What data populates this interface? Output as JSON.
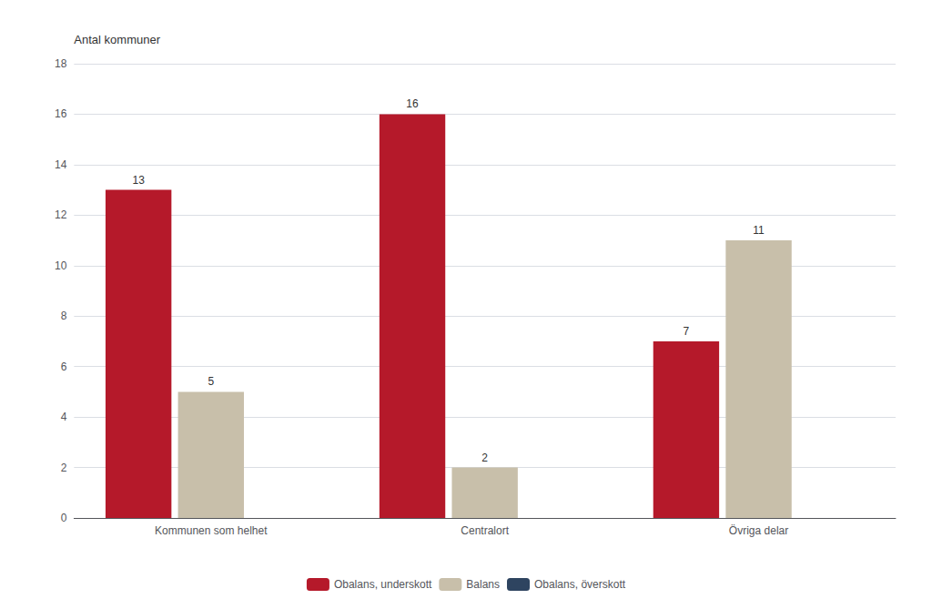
{
  "chart_data": {
    "type": "bar",
    "categories": [
      "Kommunen som helhet",
      "Centralort",
      "Övriga delar"
    ],
    "series": [
      {
        "name": "Obalans, underskott",
        "color": "#b5192a",
        "values": [
          13,
          16,
          7
        ]
      },
      {
        "name": "Balans",
        "color": "#c8bfaa",
        "values": [
          5,
          2,
          11
        ]
      },
      {
        "name": "Obalans, överskott",
        "color": "#2e4460",
        "values": [
          0,
          0,
          0
        ]
      }
    ],
    "ylabel": "Antal kommuner",
    "ylim": [
      0,
      18
    ],
    "yticks": [
      0,
      2,
      4,
      6,
      8,
      10,
      12,
      14,
      16,
      18
    ],
    "grid": true,
    "legend": "bottom",
    "data_labels": true
  }
}
